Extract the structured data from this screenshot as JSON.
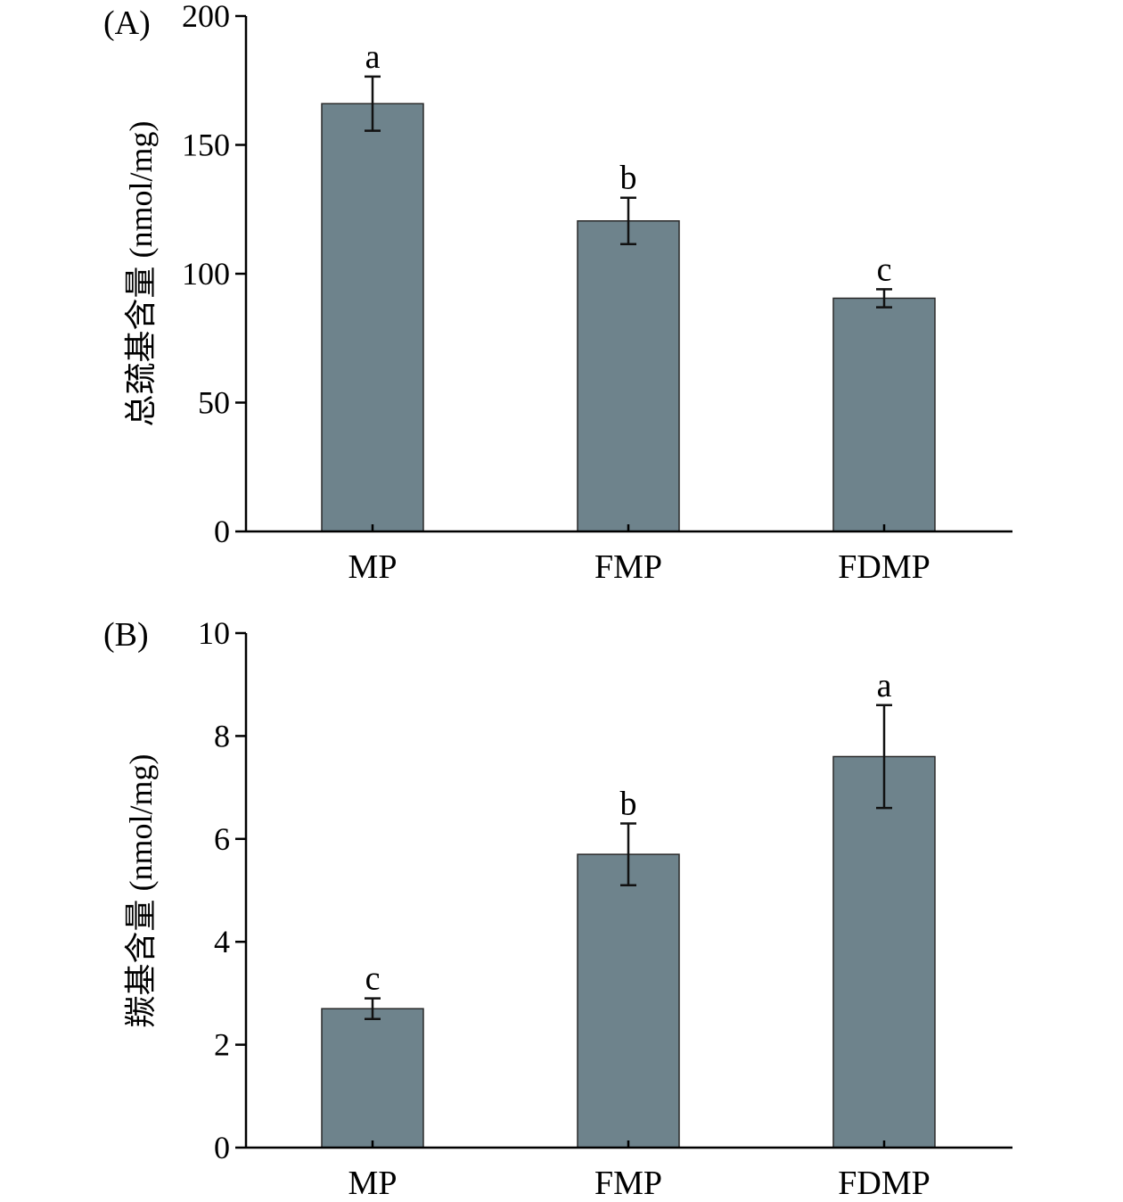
{
  "chart_data": [
    {
      "type": "bar",
      "panel_label": "(A)",
      "ylabel": "总巯基含量 (nmol/mg)",
      "categories": [
        "MP",
        "FMP",
        "FDMP"
      ],
      "values": [
        166,
        120.5,
        90.5
      ],
      "errors": [
        10.5,
        9,
        3.5
      ],
      "significance": [
        "a",
        "b",
        "c"
      ],
      "ylim": [
        0,
        200
      ],
      "yticks": [
        0,
        50,
        100,
        150,
        200
      ],
      "bar_color": "#6e838c"
    },
    {
      "type": "bar",
      "panel_label": "(B)",
      "ylabel": "羰基含量 (nmol/mg)",
      "categories": [
        "MP",
        "FMP",
        "FDMP"
      ],
      "values": [
        2.7,
        5.7,
        7.6
      ],
      "errors": [
        0.2,
        0.6,
        1.0
      ],
      "significance": [
        "c",
        "b",
        "a"
      ],
      "ylim": [
        0,
        10
      ],
      "yticks": [
        0,
        2,
        4,
        6,
        8,
        10
      ],
      "bar_color": "#6e838c"
    }
  ]
}
